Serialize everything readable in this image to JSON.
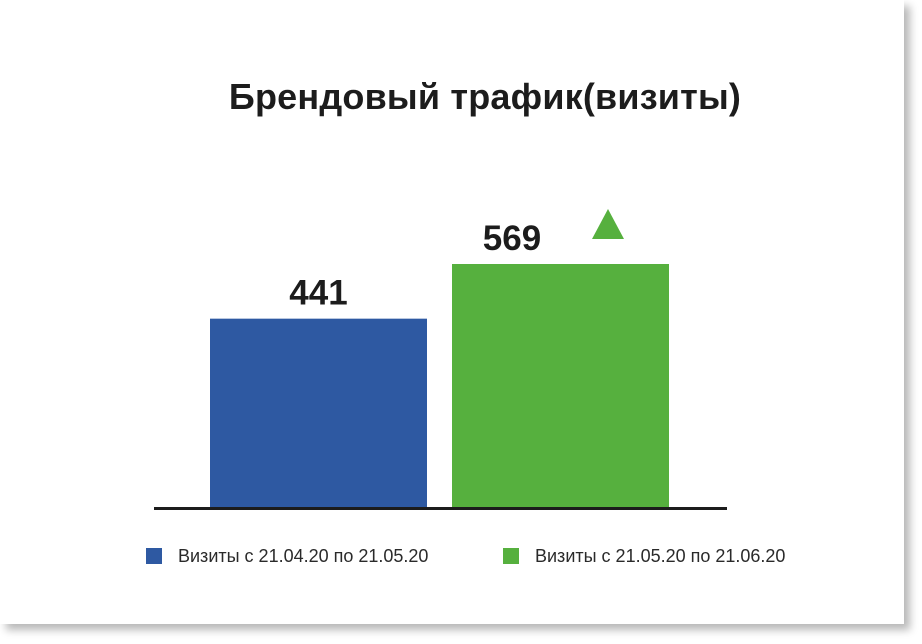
{
  "chart_data": {
    "type": "bar",
    "title": "Брендовый трафик(визиты)",
    "categories": [
      "Визиты с 21.04.20 по 21.05.20",
      "Визиты с 21.05.20 по 21.06.20"
    ],
    "values": [
      441,
      569
    ],
    "value_labels": [
      "441",
      "569"
    ],
    "colors": [
      "#2e59a2",
      "#56b03e"
    ],
    "increase_indicator": {
      "series_index": 1,
      "icon": "triangle-up-icon",
      "color": "#56b03e"
    },
    "axis_color": "#1c1c1c",
    "legend": {
      "placement": "bottom",
      "items": [
        {
          "label": "Визиты с 21.04.20 по 21.05.20",
          "color": "#2e59a2"
        },
        {
          "label": "Визиты с 21.05.20 по 21.06.20",
          "color": "#56b03e"
        }
      ]
    },
    "grid": false,
    "ylim": [
      0,
      569
    ]
  }
}
